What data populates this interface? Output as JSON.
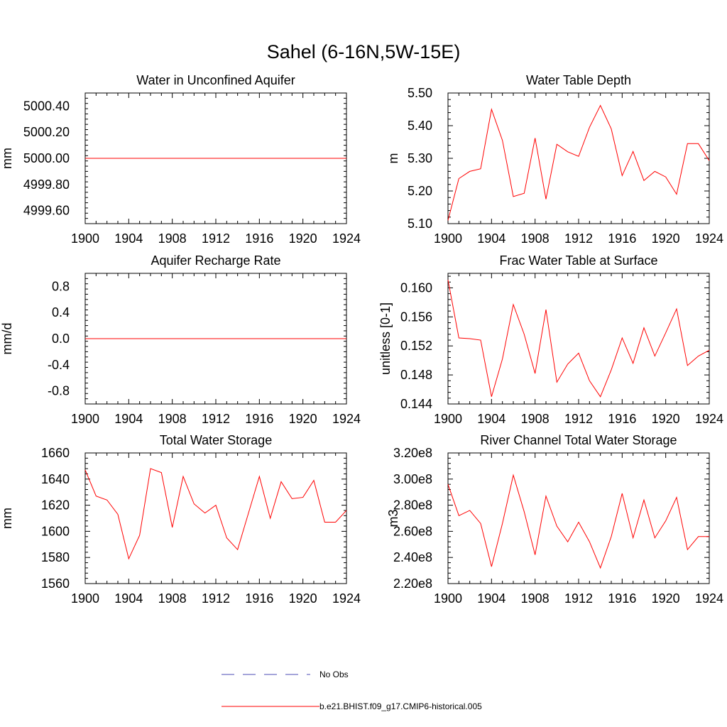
{
  "title": "Sahel (6-16N,5W-15E)",
  "colors": {
    "model": "#ff0000",
    "obs": "#4b4bb4",
    "axis": "#000000"
  },
  "legend": {
    "obs_label": "No Obs",
    "model_label": "b.e21.BHIST.f09_g17.CMIP6-historical.005"
  },
  "chart_data": [
    {
      "type": "line",
      "title": "Water in Unconfined Aquifer",
      "ylabel": "mm",
      "xlim": [
        1900,
        1924
      ],
      "ylim": [
        4999.5,
        5000.5
      ],
      "xticks": [
        1900,
        1904,
        1908,
        1912,
        1916,
        1920,
        1924
      ],
      "yticks": [
        4999.6,
        4999.8,
        5000.0,
        5000.2,
        5000.4
      ],
      "yticklabels": [
        "4999.60",
        "4999.80",
        "5000.00",
        "5000.20",
        "5000.40"
      ],
      "x": [
        1900,
        1901,
        1902,
        1903,
        1904,
        1905,
        1906,
        1907,
        1908,
        1909,
        1910,
        1911,
        1912,
        1913,
        1914,
        1915,
        1916,
        1917,
        1918,
        1919,
        1920,
        1921,
        1922,
        1923,
        1924
      ],
      "series": [
        {
          "values": [
            5000,
            5000,
            5000,
            5000,
            5000,
            5000,
            5000,
            5000,
            5000,
            5000,
            5000,
            5000,
            5000,
            5000,
            5000,
            5000,
            5000,
            5000,
            5000,
            5000,
            5000,
            5000,
            5000,
            5000,
            5000
          ]
        }
      ]
    },
    {
      "type": "line",
      "title": "Water Table Depth",
      "ylabel": "m",
      "xlim": [
        1900,
        1924
      ],
      "ylim": [
        5.1,
        5.5
      ],
      "xticks": [
        1900,
        1904,
        1908,
        1912,
        1916,
        1920,
        1924
      ],
      "yticks": [
        5.1,
        5.2,
        5.3,
        5.4,
        5.5
      ],
      "yticklabels": [
        "5.10",
        "5.20",
        "5.30",
        "5.40",
        "5.50"
      ],
      "x": [
        1900,
        1901,
        1902,
        1903,
        1904,
        1905,
        1906,
        1907,
        1908,
        1909,
        1910,
        1911,
        1912,
        1913,
        1914,
        1915,
        1916,
        1917,
        1918,
        1919,
        1920,
        1921,
        1922,
        1923,
        1924
      ],
      "series": [
        {
          "values": [
            5.11,
            5.238,
            5.26,
            5.268,
            5.45,
            5.355,
            5.183,
            5.193,
            5.362,
            5.175,
            5.343,
            5.32,
            5.306,
            5.395,
            5.462,
            5.39,
            5.247,
            5.321,
            5.232,
            5.26,
            5.243,
            5.19,
            5.345,
            5.345,
            5.293
          ]
        }
      ]
    },
    {
      "type": "line",
      "title": "Aquifer Recharge Rate",
      "ylabel": "mm/d",
      "xlim": [
        1900,
        1924
      ],
      "ylim": [
        -1.0,
        1.0
      ],
      "xticks": [
        1900,
        1904,
        1908,
        1912,
        1916,
        1920,
        1924
      ],
      "yticks": [
        -0.8,
        -0.4,
        0.0,
        0.4,
        0.8
      ],
      "yticklabels": [
        "-0.8",
        "-0.4",
        "0.0",
        "0.4",
        "0.8"
      ],
      "x": [
        1900,
        1901,
        1902,
        1903,
        1904,
        1905,
        1906,
        1907,
        1908,
        1909,
        1910,
        1911,
        1912,
        1913,
        1914,
        1915,
        1916,
        1917,
        1918,
        1919,
        1920,
        1921,
        1922,
        1923,
        1924
      ],
      "series": [
        {
          "values": [
            0,
            0,
            0,
            0,
            0,
            0,
            0,
            0,
            0,
            0,
            0,
            0,
            0,
            0,
            0,
            0,
            0,
            0,
            0,
            0,
            0,
            0,
            0,
            0,
            0
          ]
        }
      ]
    },
    {
      "type": "line",
      "title": "Frac Water Table at Surface",
      "ylabel": "unitless [0-1]",
      "xlim": [
        1900,
        1924
      ],
      "ylim": [
        0.144,
        0.162
      ],
      "xticks": [
        1900,
        1904,
        1908,
        1912,
        1916,
        1920,
        1924
      ],
      "yticks": [
        0.144,
        0.148,
        0.152,
        0.156,
        0.16
      ],
      "yticklabels": [
        "0.144",
        "0.148",
        "0.152",
        "0.156",
        "0.160"
      ],
      "x": [
        1900,
        1901,
        1902,
        1903,
        1904,
        1905,
        1906,
        1907,
        1908,
        1909,
        1910,
        1911,
        1912,
        1913,
        1914,
        1915,
        1916,
        1917,
        1918,
        1919,
        1920,
        1921,
        1922,
        1923,
        1924
      ],
      "series": [
        {
          "values": [
            0.1611,
            0.1531,
            0.153,
            0.1528,
            0.145,
            0.1502,
            0.1577,
            0.1536,
            0.1482,
            0.157,
            0.147,
            0.1495,
            0.151,
            0.1472,
            0.145,
            0.1487,
            0.1531,
            0.1496,
            0.1545,
            0.1506,
            0.1538,
            0.1571,
            0.1493,
            0.1506,
            0.1514
          ]
        }
      ]
    },
    {
      "type": "line",
      "title": "Total Water Storage",
      "ylabel": "mm",
      "xlim": [
        1900,
        1924
      ],
      "ylim": [
        1560,
        1660
      ],
      "xticks": [
        1900,
        1904,
        1908,
        1912,
        1916,
        1920,
        1924
      ],
      "yticks": [
        1560,
        1580,
        1600,
        1620,
        1640,
        1660
      ],
      "yticklabels": [
        "1560",
        "1580",
        "1600",
        "1620",
        "1640",
        "1660"
      ],
      "x": [
        1900,
        1901,
        1902,
        1903,
        1904,
        1905,
        1906,
        1907,
        1908,
        1909,
        1910,
        1911,
        1912,
        1913,
        1914,
        1915,
        1916,
        1917,
        1918,
        1919,
        1920,
        1921,
        1922,
        1923,
        1924
      ],
      "series": [
        {
          "values": [
            1647,
            1627,
            1624,
            1613,
            1579,
            1597,
            1648,
            1645,
            1603,
            1642,
            1621,
            1614,
            1620,
            1595,
            1586,
            1614,
            1642,
            1610,
            1638,
            1625,
            1626,
            1639,
            1607,
            1607,
            1616
          ]
        }
      ]
    },
    {
      "type": "line",
      "title": "River Channel Total Water Storage",
      "ylabel": "m3",
      "xlim": [
        1900,
        1924
      ],
      "ylim": [
        220000000,
        320000000
      ],
      "xticks": [
        1900,
        1904,
        1908,
        1912,
        1916,
        1920,
        1924
      ],
      "yticks": [
        220000000,
        240000000,
        260000000,
        280000000,
        300000000,
        320000000
      ],
      "yticklabels": [
        "2.20e8",
        "2.40e8",
        "2.60e8",
        "2.80e8",
        "3.00e8",
        "3.20e8"
      ],
      "x": [
        1900,
        1901,
        1902,
        1903,
        1904,
        1905,
        1906,
        1907,
        1908,
        1909,
        1910,
        1911,
        1912,
        1913,
        1914,
        1915,
        1916,
        1917,
        1918,
        1919,
        1920,
        1921,
        1922,
        1923,
        1924
      ],
      "series": [
        {
          "values": [
            296000000,
            272000000,
            276000000,
            266000000,
            233000000,
            266000000,
            303000000,
            275000000,
            242000000,
            287000000,
            264000000,
            252000000,
            267000000,
            252000000,
            232000000,
            256000000,
            289000000,
            255000000,
            284000000,
            255000000,
            268000000,
            286000000,
            246000000,
            256000000,
            256000000
          ]
        }
      ]
    }
  ]
}
